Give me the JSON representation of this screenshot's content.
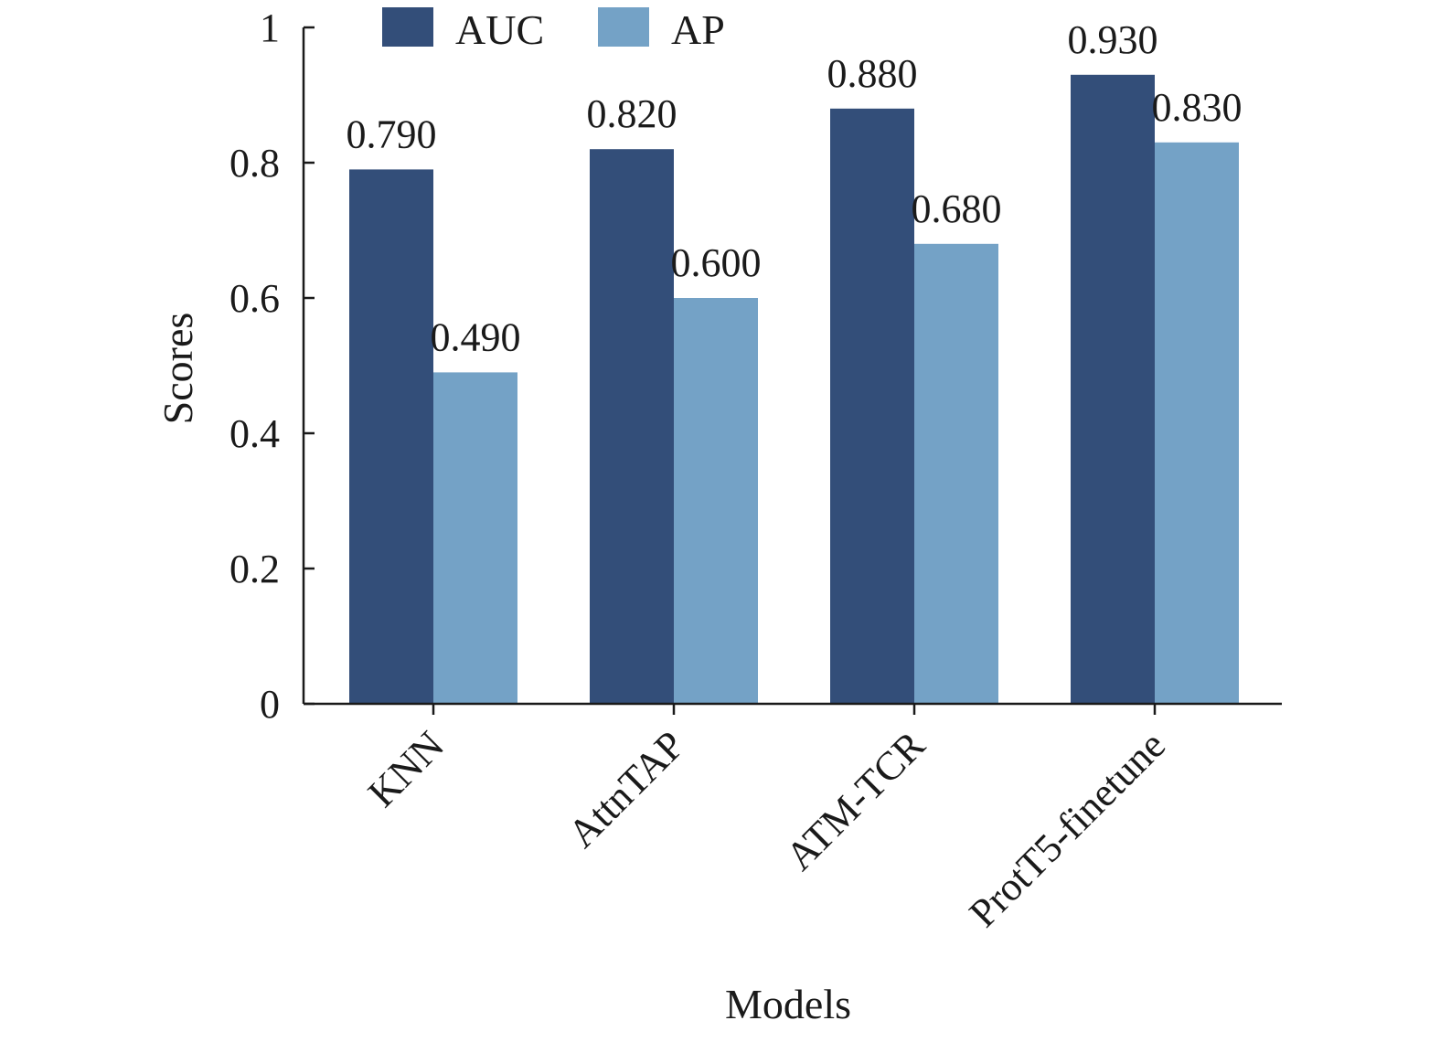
{
  "chart_data": {
    "type": "bar",
    "categories": [
      "KNN",
      "AttnTAP",
      "ATM-TCR",
      "ProtT5-finetune"
    ],
    "series": [
      {
        "name": "AUC",
        "values": [
          0.79,
          0.82,
          0.88,
          0.93
        ],
        "labels": [
          "0.790",
          "0.820",
          "0.880",
          "0.930"
        ],
        "color": "#334e79"
      },
      {
        "name": "AP",
        "values": [
          0.49,
          0.6,
          0.68,
          0.83
        ],
        "labels": [
          "0.490",
          "0.600",
          "0.680",
          "0.830"
        ],
        "color": "#74a2c6"
      }
    ],
    "xlabel": "Models",
    "ylabel": "Scores",
    "ylim": [
      0,
      1
    ],
    "yticks": [
      {
        "value": 0,
        "label": "0"
      },
      {
        "value": 0.2,
        "label": "0.2"
      },
      {
        "value": 0.4,
        "label": "0.4"
      },
      {
        "value": 0.6,
        "label": "0.6"
      },
      {
        "value": 0.8,
        "label": "0.8"
      },
      {
        "value": 1,
        "label": "1"
      }
    ],
    "grid": false,
    "legend_position": "top-center"
  }
}
